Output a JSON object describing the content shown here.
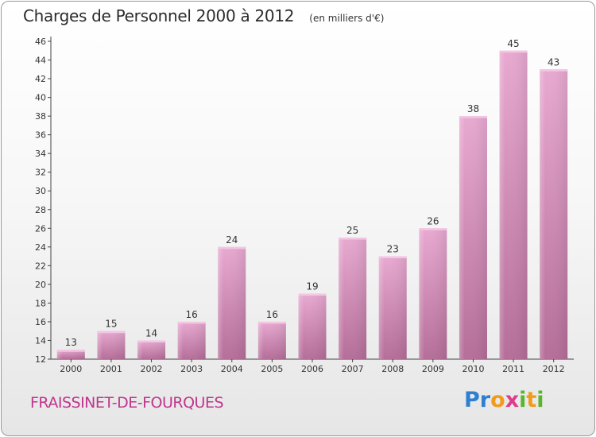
{
  "title": "Charges de Personnel 2000 à 2012",
  "subtitle": "(en milliers d'€)",
  "commune": "FRAISSINET-DE-FOURQUES",
  "logo": {
    "letters": [
      "P",
      "r",
      "o",
      "x",
      "i",
      "t",
      "i"
    ],
    "colors": [
      "#2f7fd1",
      "#2f7fd1",
      "#f29a1c",
      "#e03a8c",
      "#5ab52e",
      "#f29a1c",
      "#5ab52e"
    ]
  },
  "chart_data": {
    "type": "bar",
    "categories": [
      "2000",
      "2001",
      "2002",
      "2003",
      "2004",
      "2005",
      "2006",
      "2007",
      "2008",
      "2009",
      "2010",
      "2011",
      "2012"
    ],
    "values": [
      13,
      15,
      14,
      16,
      24,
      16,
      19,
      25,
      23,
      26,
      38,
      45,
      43
    ],
    "value_labels": [
      "13",
      "15",
      "14",
      "16",
      "24",
      "16",
      "19",
      "25",
      "23",
      "26",
      "38",
      "45",
      "43"
    ],
    "yticks": [
      "12",
      "14",
      "16",
      "18",
      "20",
      "22",
      "24",
      "26",
      "28",
      "30",
      "32",
      "34",
      "36",
      "38",
      "40",
      "42",
      "44",
      "46"
    ],
    "ylim": [
      12,
      46
    ],
    "grid": false,
    "bar_color": "#d990bd"
  }
}
